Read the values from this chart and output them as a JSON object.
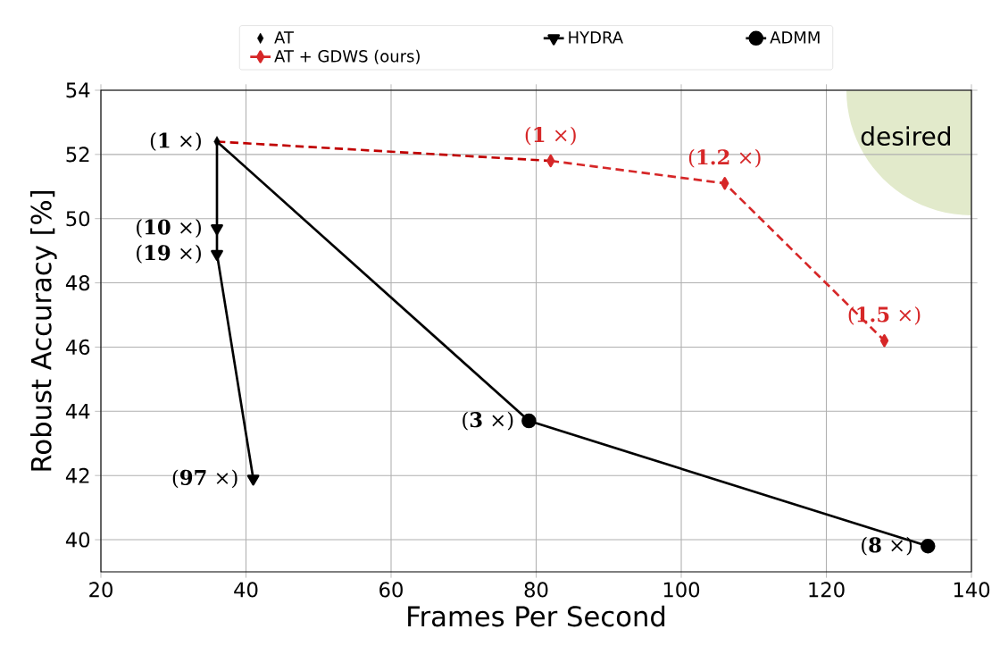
{
  "chart_data": {
    "type": "line",
    "xlabel": "Frames Per Second",
    "ylabel": "Robust Accuracy [%]",
    "xlim": [
      20,
      140
    ],
    "ylim": [
      39,
      54
    ],
    "xticks": [
      20,
      40,
      60,
      80,
      100,
      120,
      140
    ],
    "yticks": [
      40,
      42,
      44,
      46,
      48,
      50,
      52,
      54
    ],
    "grid": true,
    "legend": "top",
    "annotations": [
      "desired",
      {
        "text": "(**1** ×)",
        "x": 36,
        "y": 52.4
      },
      {
        "text": "(**10** ×)",
        "x": 36,
        "y": 49.7
      },
      {
        "text": "(**19** ×)",
        "x": 36,
        "y": 48.9
      },
      {
        "text": "(**97** ×)",
        "x": 41,
        "y": 41.9
      },
      {
        "text": "(**3** ×)",
        "x": 79,
        "y": 43.7
      },
      {
        "text": "(**8** ×)",
        "x": 134,
        "y": 39.8
      },
      {
        "text": "(**1** ×)",
        "x": 82,
        "y": 51.8
      },
      {
        "text": "(**1.2** ×)",
        "x": 106,
        "y": 51.1
      },
      {
        "text": "(**1.5** ×)",
        "x": 128,
        "y": 46.2
      }
    ],
    "series": [
      {
        "name": "AT",
        "type": "scatter",
        "color": "#000000",
        "marker": "diamond",
        "x": [
          36
        ],
        "values": [
          52.4
        ]
      },
      {
        "name": "HYDRA",
        "color": "#000000",
        "marker": "triangle",
        "line_style": "solid",
        "x": [
          36,
          36,
          41
        ],
        "values": [
          49.7,
          48.9,
          41.9
        ]
      },
      {
        "name": "ADMM",
        "color": "#000000",
        "marker": "circle",
        "line_style": "solid",
        "x": [
          79,
          134
        ],
        "values": [
          43.7,
          39.8
        ]
      },
      {
        "name": "AT + GDWS (ours)",
        "color": "#d62728",
        "marker": "diamond",
        "line_style": "dashed",
        "x": [
          82,
          106,
          128
        ],
        "values": [
          51.8,
          51.1,
          46.2
        ]
      },
      {
        "color": "#000000",
        "marker": "none",
        "line_style": "solid",
        "x": [
          36,
          36
        ],
        "values": [
          52.4,
          49.7
        ]
      },
      {
        "color": "#000000",
        "marker": "none",
        "line_style": "solid",
        "x": [
          36,
          79
        ],
        "values": [
          52.4,
          43.7
        ]
      },
      {
        "color": "#c00000",
        "marker": "none",
        "line_style": "dashed",
        "x": [
          36,
          82
        ],
        "values": [
          52.4,
          51.8
        ]
      }
    ]
  }
}
